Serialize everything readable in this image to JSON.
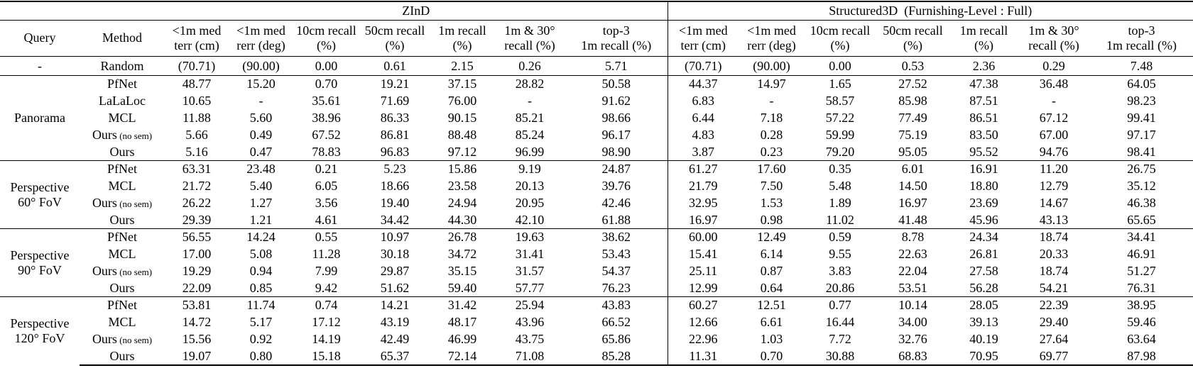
{
  "table": {
    "groups": [
      {
        "label": "ZInD",
        "span": 7
      },
      {
        "label": "Structured3D  (Furnishing-Level : Full)",
        "span": 7
      }
    ],
    "query_header": "Query",
    "method_header": "Method",
    "metric_headers": [
      {
        "l1": "<1m med",
        "l2": "terr (cm)"
      },
      {
        "l1": "<1m med",
        "l2": "rerr (deg)"
      },
      {
        "l1": "10cm recall",
        "l2": "(%)"
      },
      {
        "l1": "50cm recall",
        "l2": "(%)"
      },
      {
        "l1": "1m recall",
        "l2": "(%)"
      },
      {
        "l1": "1m & 30°",
        "l2": "recall (%)"
      },
      {
        "l1": "top-3",
        "l2": "1m recall (%)"
      }
    ],
    "sections": [
      {
        "query": [
          "-"
        ],
        "rows": [
          {
            "method": "Random",
            "cells": [
              "(70.71)",
              "(90.00)",
              "0.00",
              "0.61",
              "2.15",
              "0.26",
              "5.71",
              "(70.71)",
              "(90.00)",
              "0.00",
              "0.53",
              "2.36",
              "0.29",
              "7.48"
            ]
          }
        ]
      },
      {
        "query": [
          "Panorama"
        ],
        "rows": [
          {
            "method": "PfNet",
            "cells": [
              "48.77",
              "15.20",
              "0.70",
              "19.21",
              "37.15",
              "28.82",
              "50.58",
              "44.37",
              "14.97",
              "1.65",
              "27.52",
              "47.38",
              "36.48",
              "64.05"
            ]
          },
          {
            "method": "LaLaLoc",
            "cells": [
              "10.65",
              "-",
              "35.61",
              "71.69",
              "76.00",
              "-",
              "91.62",
              "6.83",
              "-",
              "58.57",
              "85.98",
              "87.51",
              "-",
              "98.23"
            ]
          },
          {
            "method": "MCL",
            "cells": [
              "11.88",
              "5.60",
              "38.96",
              "86.33",
              "90.15",
              "85.21",
              "98.66",
              "6.44",
              "7.18",
              "57.22",
              "77.49",
              "86.51",
              "67.12",
              [
                "99.41",
                1
              ]
            ]
          },
          {
            "method": "Ours",
            "note": "(no sem)",
            "cells": [
              "5.66",
              "0.49",
              "67.52",
              "86.81",
              "88.48",
              "85.24",
              "96.17",
              "4.83",
              "0.28",
              "59.99",
              "75.19",
              "83.50",
              "67.00",
              "97.17"
            ]
          },
          {
            "method": "Ours",
            "cells": [
              [
                "5.16",
                1
              ],
              [
                "0.47",
                1
              ],
              [
                "78.83",
                1
              ],
              [
                "96.83",
                1
              ],
              [
                "97.12",
                1
              ],
              [
                "96.99",
                1
              ],
              [
                "98.90",
                1
              ],
              [
                "3.87",
                1
              ],
              [
                "0.23",
                1
              ],
              [
                "79.20",
                1
              ],
              [
                "95.05",
                1
              ],
              [
                "95.52",
                1
              ],
              [
                "94.76",
                1
              ],
              "98.41"
            ]
          }
        ]
      },
      {
        "query": [
          "Perspective",
          "60° FoV"
        ],
        "rows": [
          {
            "method": "PfNet",
            "cells": [
              "63.31",
              "23.48",
              "0.21",
              "5.23",
              "15.86",
              "9.19",
              "24.87",
              "61.27",
              "17.60",
              "0.35",
              "6.01",
              "16.91",
              "11.20",
              "26.75"
            ]
          },
          {
            "method": "MCL",
            "cells": [
              [
                "21.72",
                1
              ],
              "5.40",
              [
                "6.05",
                1
              ],
              "18.66",
              "23.58",
              "20.13",
              "39.76",
              "21.79",
              "7.50",
              "5.48",
              "14.50",
              "18.80",
              "12.79",
              "35.12"
            ]
          },
          {
            "method": "Ours",
            "note": "(no sem)",
            "cells": [
              "26.22",
              "1.27",
              "3.56",
              "19.40",
              "24.94",
              "20.95",
              "42.46",
              "32.95",
              "1.53",
              "1.89",
              "16.97",
              "23.69",
              "14.67",
              "46.38"
            ]
          },
          {
            "method": "Ours",
            "cells": [
              "29.39",
              [
                "1.21",
                1
              ],
              "4.61",
              [
                "34.42",
                1
              ],
              [
                "44.30",
                1
              ],
              [
                "42.10",
                1
              ],
              [
                "61.88",
                1
              ],
              [
                "16.97",
                1
              ],
              [
                "0.98",
                1
              ],
              [
                "11.02",
                1
              ],
              [
                "41.48",
                1
              ],
              [
                "45.96",
                1
              ],
              [
                "43.13",
                1
              ],
              [
                "65.65",
                1
              ]
            ]
          }
        ]
      },
      {
        "query": [
          "Perspective",
          "90° FoV"
        ],
        "rows": [
          {
            "method": "PfNet",
            "cells": [
              "56.55",
              "14.24",
              "0.55",
              "10.97",
              "26.78",
              "19.63",
              "38.62",
              "60.00",
              "12.49",
              "0.59",
              "8.78",
              "24.34",
              "18.74",
              "34.41"
            ]
          },
          {
            "method": "MCL",
            "cells": [
              [
                "17.00",
                1
              ],
              "5.08",
              [
                "11.28",
                1
              ],
              "30.18",
              "34.72",
              "31.41",
              "53.43",
              "15.41",
              "6.14",
              "9.55",
              "22.63",
              "26.81",
              "20.33",
              "46.91"
            ]
          },
          {
            "method": "Ours",
            "note": "(no sem)",
            "cells": [
              "19.29",
              "0.94",
              "7.99",
              "29.87",
              "35.15",
              "31.57",
              "54.37",
              "25.11",
              "0.87",
              "3.83",
              "22.04",
              "27.58",
              "18.74",
              "51.27"
            ]
          },
          {
            "method": "Ours",
            "cells": [
              "22.09",
              [
                "0.85",
                1
              ],
              "9.42",
              [
                "51.62",
                1
              ],
              [
                "59.40",
                1
              ],
              [
                "57.77",
                1
              ],
              [
                "76.23",
                1
              ],
              [
                "12.99",
                1
              ],
              [
                "0.64",
                1
              ],
              [
                "20.86",
                1
              ],
              [
                "53.51",
                1
              ],
              [
                "56.28",
                1
              ],
              [
                "54.21",
                1
              ],
              [
                "76.31",
                1
              ]
            ]
          }
        ]
      },
      {
        "query": [
          "Perspective",
          "120° FoV"
        ],
        "rows": [
          {
            "method": "PfNet",
            "cells": [
              "53.81",
              "11.74",
              "0.74",
              "14.21",
              "31.42",
              "25.94",
              "43.83",
              "60.27",
              "12.51",
              "0.77",
              "10.14",
              "28.05",
              "22.39",
              "38.95"
            ]
          },
          {
            "method": "MCL",
            "cells": [
              [
                "14.72",
                1
              ],
              "5.17",
              [
                "17.12",
                1
              ],
              "43.19",
              "48.17",
              "43.96",
              "66.52",
              "12.66",
              "6.61",
              "16.44",
              "34.00",
              "39.13",
              "29.40",
              "59.46"
            ]
          },
          {
            "method": "Ours",
            "note": "(no sem)",
            "cells": [
              "15.56",
              "0.92",
              "14.19",
              "42.49",
              "46.99",
              "43.75",
              "65.86",
              "22.96",
              "1.03",
              "7.72",
              "32.76",
              "40.19",
              "27.64",
              "63.64"
            ]
          },
          {
            "method": "Ours",
            "cells": [
              "19.07",
              [
                "0.80",
                1
              ],
              "15.18",
              [
                "65.37",
                1
              ],
              [
                "72.14",
                1
              ],
              [
                "71.08",
                1
              ],
              [
                "85.28",
                1
              ],
              [
                "11.31",
                1
              ],
              [
                "0.70",
                1
              ],
              [
                "30.88",
                1
              ],
              [
                "68.83",
                1
              ],
              [
                "70.95",
                1
              ],
              [
                "69.77",
                1
              ],
              [
                "87.98",
                1
              ]
            ]
          }
        ]
      }
    ]
  }
}
